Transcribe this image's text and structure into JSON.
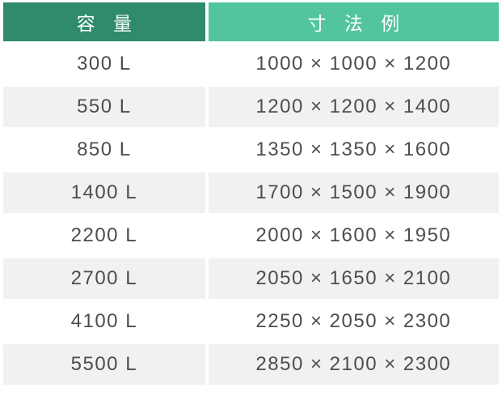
{
  "chart_data": {
    "type": "table",
    "columns": [
      "容 量",
      "寸 法 例"
    ],
    "rows": [
      [
        "300 L",
        "1000 × 1000 × 1200"
      ],
      [
        "550 L",
        "1200 × 1200 × 1400"
      ],
      [
        "850 L",
        "1350 × 1350 × 1600"
      ],
      [
        "1400 L",
        "1700 × 1500 × 1900"
      ],
      [
        "2200 L",
        "2000 × 1600 × 1950"
      ],
      [
        "2700 L",
        "2050 × 1650 × 2100"
      ],
      [
        "4100 L",
        "2250 × 2050 × 2300"
      ],
      [
        "5500 L",
        "2850 × 2100 × 2300"
      ]
    ]
  },
  "table": {
    "headers": [
      {
        "label": "容 量"
      },
      {
        "label": "寸 法 例"
      }
    ],
    "rows": [
      {
        "capacity": "300 L",
        "dimensions": "1000 × 1000 × 1200"
      },
      {
        "capacity": "550 L",
        "dimensions": "1200 × 1200 × 1400"
      },
      {
        "capacity": "850 L",
        "dimensions": "1350 × 1350 × 1600"
      },
      {
        "capacity": "1400 L",
        "dimensions": "1700 × 1500 × 1900"
      },
      {
        "capacity": "2200 L",
        "dimensions": "2000 × 1600 × 1950"
      },
      {
        "capacity": "2700 L",
        "dimensions": "2050 × 1650 × 2100"
      },
      {
        "capacity": "4100 L",
        "dimensions": "2250 × 2050 × 2300"
      },
      {
        "capacity": "5500 L",
        "dimensions": "2850 × 2100 × 2300"
      }
    ]
  },
  "colors": {
    "header_capacity_bg": "#2f8a6e",
    "header_dimensions_bg": "#52c4a0",
    "row_stripe_bg": "#f1f1f1",
    "row_text": "#4d4d4d",
    "header_text": "#ffffff",
    "page_bg": "#ffffff"
  }
}
